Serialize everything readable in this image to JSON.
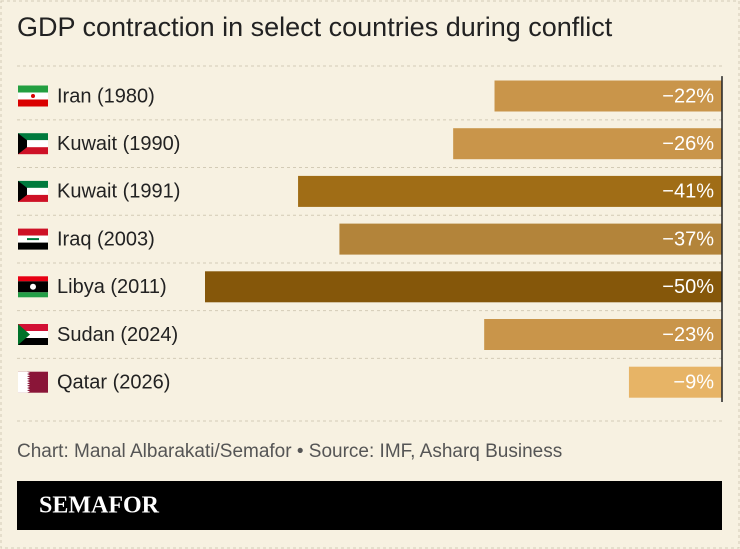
{
  "chart_data": {
    "type": "bar",
    "orientation": "horizontal",
    "title": "GDP contraction in select countries during conflict",
    "categories": [
      "Iran (1980)",
      "Kuwait (1990)",
      "Kuwait (1991)",
      "Iraq (2003)",
      "Libya (2011)",
      "Sudan (2024)",
      "Qatar (2026)"
    ],
    "values": [
      -22,
      -26,
      -41,
      -37,
      -50,
      -23,
      -9
    ],
    "value_labels": [
      "−22%",
      "−26%",
      "−41%",
      "−37%",
      "−50%",
      "−23%",
      "−9%"
    ],
    "colors": [
      "#c9954a",
      "#c9954a",
      "#a06d16",
      "#b3843a",
      "#85570a",
      "#c9954a",
      "#e7b466"
    ],
    "xlim": [
      -50,
      0
    ],
    "source": "Chart: Manal Albarakati/Semafor • Source: IMF, Asharq Business",
    "brand": "SEMAFOR"
  }
}
